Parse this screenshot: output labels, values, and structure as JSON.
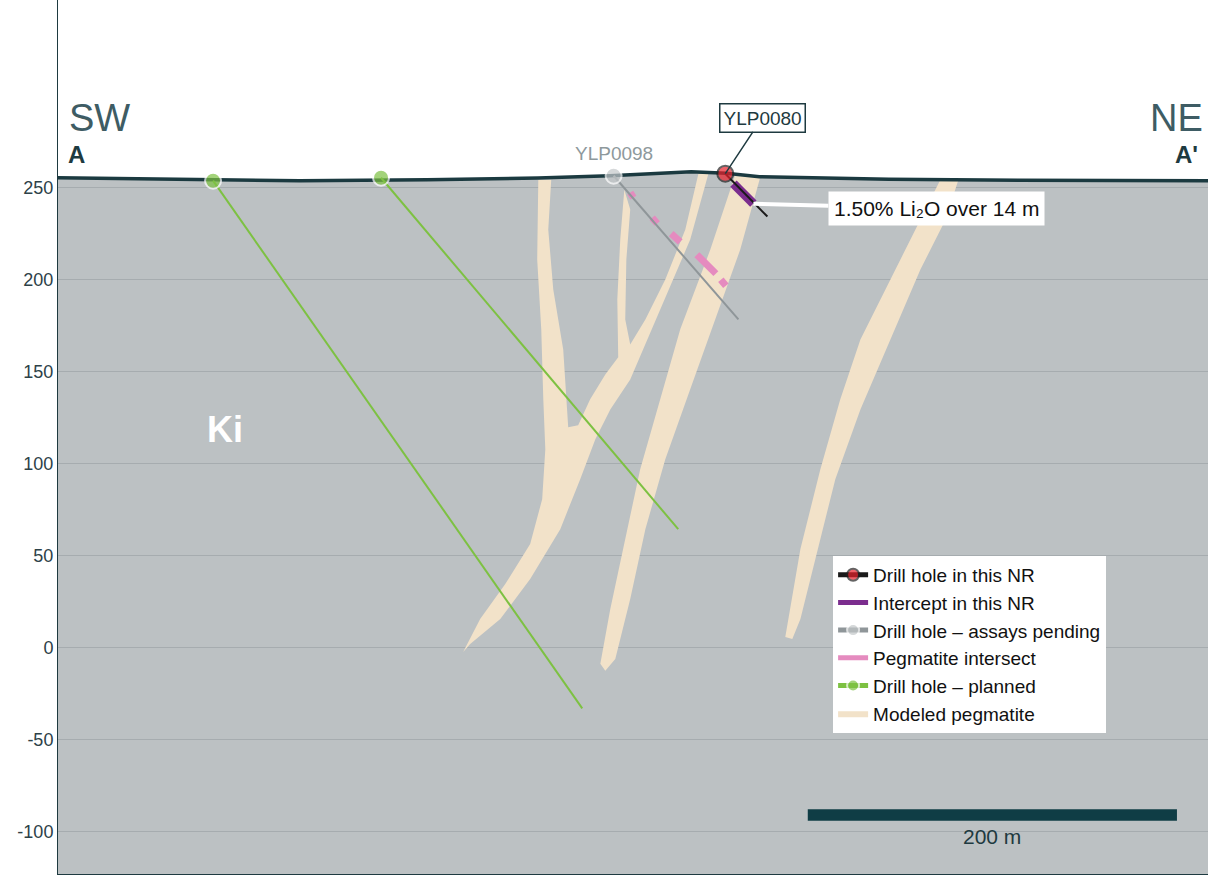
{
  "chart_data": {
    "type": "cross_section",
    "corner_labels": {
      "left": "SW",
      "left_point": "A",
      "right": "NE",
      "right_point": "A'"
    },
    "unit_label": "Ki",
    "xlim": [
      0,
      623
    ],
    "ylim": [
      -123,
      352
    ],
    "yticks": [
      250,
      200,
      150,
      100,
      50,
      0,
      -50,
      -100
    ],
    "grid": true,
    "tick_labels": "y",
    "legend": "lower right",
    "ground": {
      "color": "#bcc1c3"
    },
    "surface": {
      "color": "#1b3a40",
      "x": [
        0,
        60,
        131,
        200,
        260,
        299,
        330,
        343,
        362,
        380,
        450,
        520,
        623
      ],
      "y": [
        255.4,
        254.8,
        253.8,
        254.3,
        255.2,
        256.5,
        257.8,
        258.7,
        257.8,
        256,
        254.6,
        254.0,
        253.8
      ]
    },
    "series": [
      {
        "name": "Drill hole in this NR",
        "type": "hole",
        "label": "YLP0080",
        "color": "#e8202a",
        "marker": "circle",
        "line_style": "dark",
        "x": [
          361.5,
          384.3
        ],
        "y": [
          257.6,
          234.3
        ]
      },
      {
        "name": "Intercept in this NR",
        "type": "intercept",
        "label": "1.50% Li₂O over 14 m",
        "color": "#7b2d8e",
        "x": [
          365.9,
          376.7
        ],
        "y": [
          252.2,
          241.3
        ]
      },
      {
        "name": "Drill hole – assays pending",
        "type": "hole",
        "label": "YLP0098",
        "color": "#c4c8ca",
        "marker": "circle",
        "line_style": "gray",
        "x": [
          301,
          368.6
        ],
        "y": [
          256.5,
          178.4
        ]
      },
      {
        "name": "Pegmatite intersect",
        "type": "intersect",
        "color": "#e58bbf",
        "x": [
          310.0,
          311.7,
          null,
          321.9,
          324.6,
          null,
          332.2,
          337.1,
          null,
          346.1,
          356.4,
          null,
          359.1,
          361.8
        ],
        "y": [
          247.3,
          244.6,
          null,
          233.7,
          230.5,
          null,
          225.0,
          220.6,
          null,
          213.6,
          203.3,
          null,
          200.0,
          196.7
        ]
      },
      {
        "name": "Drill hole – planned",
        "type": "hole",
        "color": "#7dc142",
        "marker": "circle",
        "line_style": "solid",
        "x": [
          84,
          284,
          null,
          175,
          336
        ],
        "y": [
          253.8,
          -33,
          null,
          255.4,
          64.4
        ]
      },
      {
        "name": "Modeled pegmatite",
        "type": "pegmatite",
        "color": "#f2e2c9",
        "x": [
          260.2,
          267.2,
          265.6,
          268.3,
          273.7,
          275.3,
          276.4,
          281.8,
          288.3,
          296.5,
          303.5,
          303.0,
          304.6,
          306.8,
          310.0,
          307.9,
          307.3,
          310.0,
          318.2,
          329.0,
          339.8,
          346.9,
          352.3,
          342.5,
          326.3,
          310.0,
          299.2,
          291.1,
          282.9,
          272.1,
          255.8,
          239.6,
          223.3,
          219.5,
          228.7,
          242.3,
          255.8,
          262.3,
          264.0,
          262.9,
          261.8,
          259.6,
          null,
          366.9,
          353.4,
          337.1,
          326.3,
          315.4,
          307.3,
          299.2,
          293.8,
          296.5,
          301.9,
          310.0,
          318.2,
          329.0,
          342.5,
          356.1,
          369.6,
          380.5,
          null,
          478.0,
          464.5,
          450.9,
          434.7,
          423.8,
          413.0,
          402.2,
          395.7,
          394.0,
          397.8,
          402.2,
          410.3,
          421.1,
          434.7,
          450.9,
          467.2,
          480.8,
          487.8
        ],
        "y": [
          254.3,
          254.3,
          227.2,
          194.7,
          162.1,
          135.0,
          119.8,
          120.9,
          135.0,
          148.5,
          157.8,
          189.2,
          221.8,
          248.9,
          238.1,
          210.9,
          178.4,
          164.8,
          178.4,
          200.1,
          227.2,
          257.5,
          257.5,
          221.8,
          183.8,
          145.8,
          129.5,
          113.3,
          91.6,
          64.4,
          37.3,
          15.6,
          2.0,
          -2.3,
          15.6,
          34.6,
          56.3,
          80.7,
          107.8,
          135.0,
          173.0,
          210.9,
          null,
          257,
          216.4,
          173.0,
          135.0,
          97.0,
          59.0,
          21.0,
          -8.8,
          -12.6,
          -6.1,
          26.4,
          64.4,
          102.4,
          140.4,
          178.4,
          216.4,
          256,
          null,
          254.3,
          227.2,
          200.1,
          167.5,
          135.0,
          97.0,
          53.6,
          15.6,
          5.8,
          4.7,
          15.6,
          48.2,
          91.6,
          129.5,
          167.5,
          205.5,
          232.6,
          254.3
        ]
      }
    ],
    "scale_bar": {
      "length": 200,
      "label": "200 m",
      "color": "#0f3d45"
    }
  }
}
